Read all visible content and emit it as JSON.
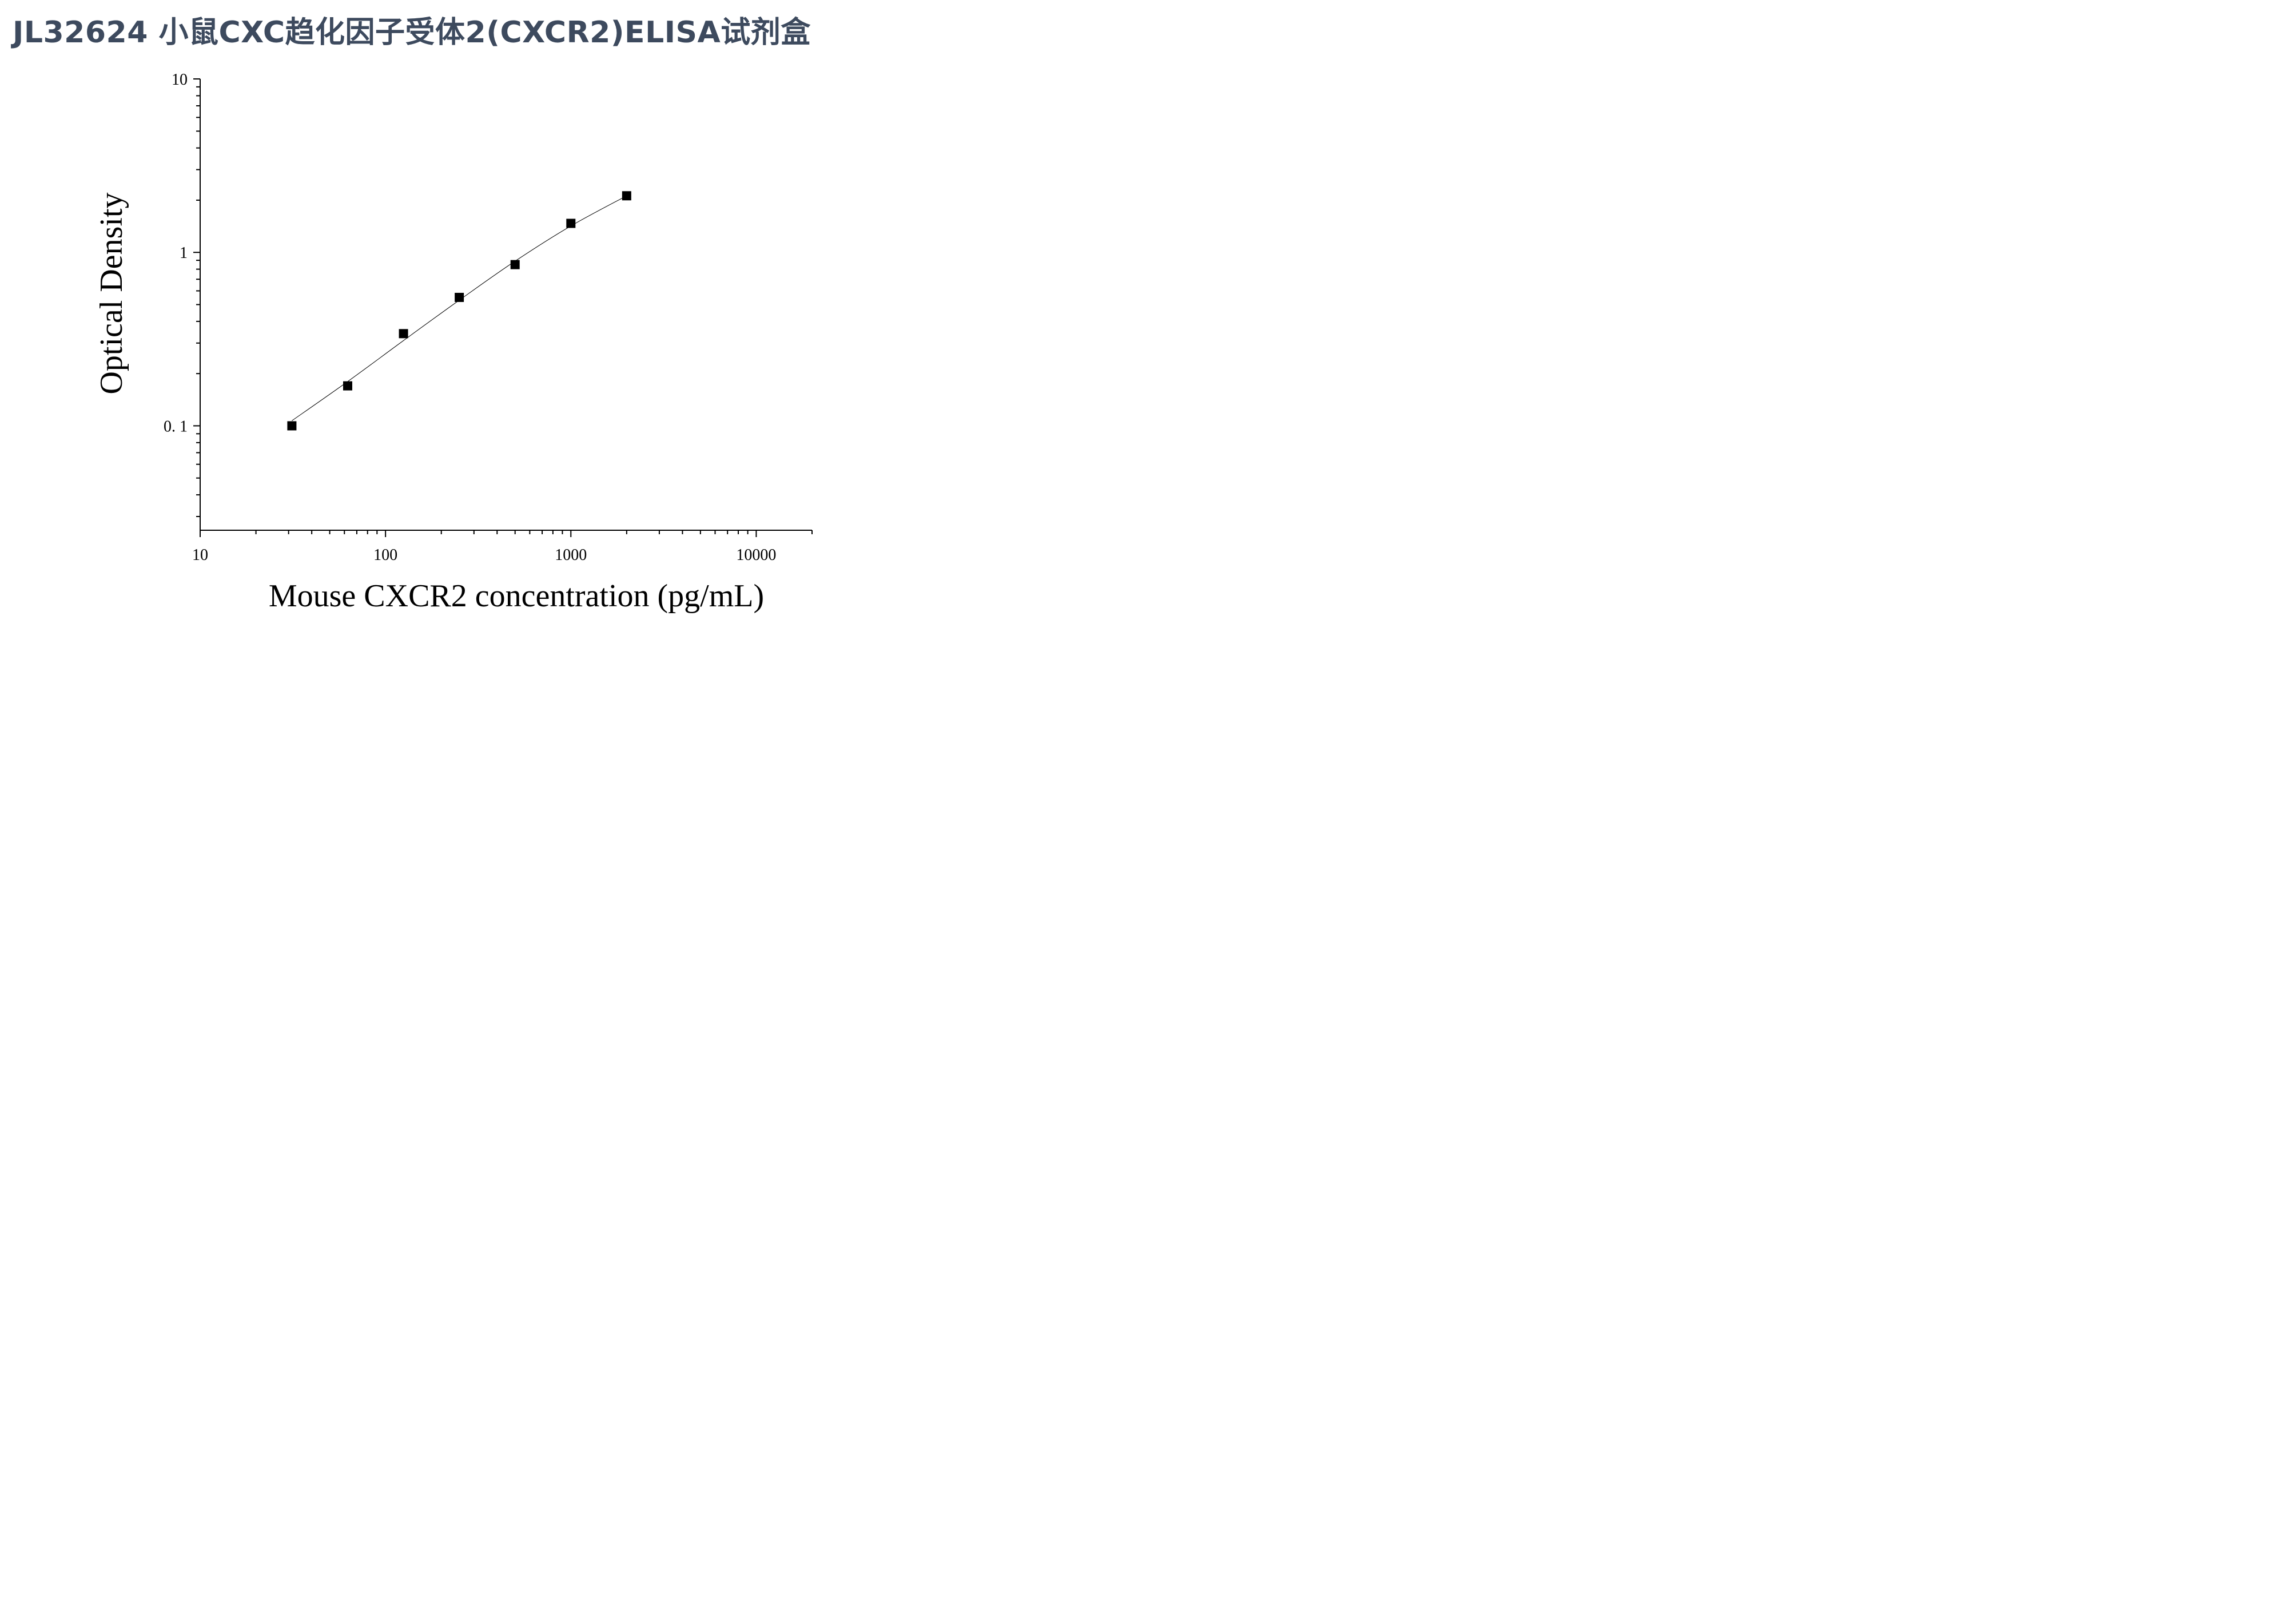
{
  "page": {
    "title": "JL32624 小鼠CXC趋化因子受体2(CXCR2)ELISA试剂盒"
  },
  "chart_data": {
    "type": "scatter",
    "title": "",
    "xlabel": "Mouse CXCR2 concentration (pg/mL)",
    "ylabel": "Optical Density",
    "x_scale": "log",
    "y_scale": "log",
    "xlim": [
      10,
      20000
    ],
    "ylim": [
      0.025,
      10
    ],
    "x_ticks": [
      10,
      100,
      1000,
      10000
    ],
    "x_tick_labels": [
      "10",
      "100",
      "1000",
      "10000"
    ],
    "y_ticks": [
      0.1,
      1,
      10
    ],
    "y_tick_labels": [
      "0. 1",
      "1",
      "10"
    ],
    "grid": false,
    "legend": "none",
    "series": [
      {
        "points": [
          {
            "x": 31.25,
            "y": 0.1
          },
          {
            "x": 62.5,
            "y": 0.17
          },
          {
            "x": 125,
            "y": 0.34
          },
          {
            "x": 250,
            "y": 0.55
          },
          {
            "x": 500,
            "y": 0.85
          },
          {
            "x": 1000,
            "y": 1.47
          },
          {
            "x": 2000,
            "y": 2.12
          }
        ],
        "marker": "square",
        "color": "#000000"
      }
    ],
    "fit_curve": {
      "type": "smooth",
      "color": "#000000",
      "points": [
        {
          "x": 31.25,
          "y": 0.107
        },
        {
          "x": 62.5,
          "y": 0.18
        },
        {
          "x": 125,
          "y": 0.31
        },
        {
          "x": 250,
          "y": 0.53
        },
        {
          "x": 500,
          "y": 0.89
        },
        {
          "x": 1000,
          "y": 1.42
        },
        {
          "x": 2000,
          "y": 2.12
        }
      ]
    }
  }
}
